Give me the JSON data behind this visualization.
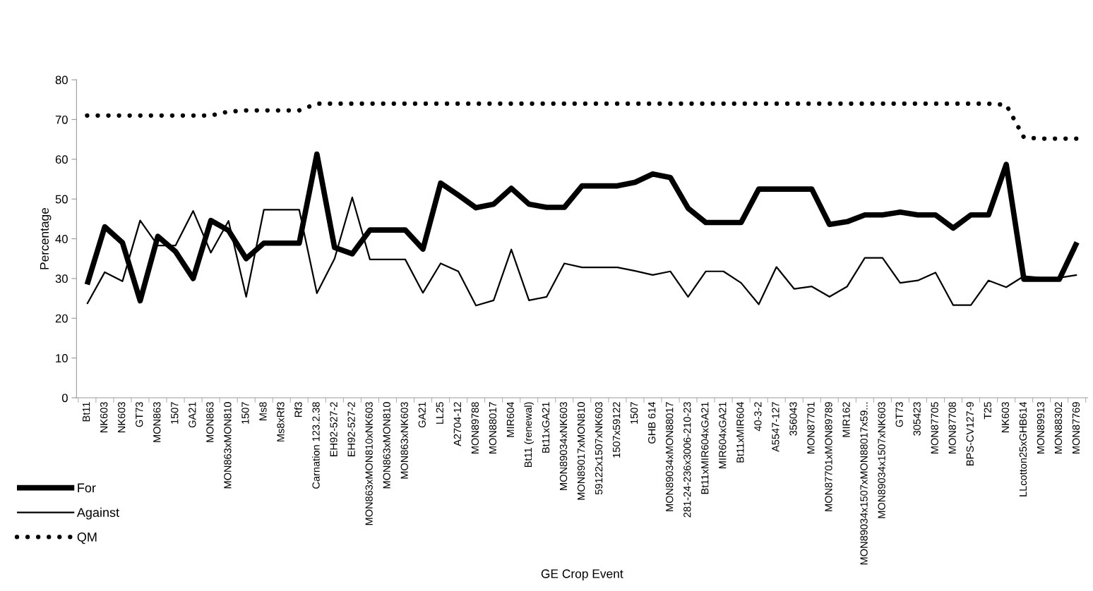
{
  "chart_data": {
    "type": "line",
    "xlabel": "GE Crop Event",
    "ylabel": "Percentage",
    "categories": [
      "Bt11",
      "NK603",
      "NK603",
      "GT73",
      "MON863",
      "1507",
      "GA21",
      "MON863",
      "MON863xMON810",
      "1507",
      "Ms8",
      "Ms8xRf3",
      "Rf3",
      "Carnation 123.2.38",
      "EH92-527-2",
      "EH92-527-2",
      "MON863xMON810xNK603",
      "MON863xMON810",
      "MON863xNK603",
      "GA21",
      "LL25",
      "A2704-12",
      "MON89788",
      "MON88017",
      "MIR604",
      "Bt11 (renewal)",
      "Bt11xGA21",
      "MON89034xNK603",
      "MON89017xMON810",
      "59122x1507xNK603",
      "1507x59122",
      "1507",
      "GHB 614",
      "MON89034xMON88017",
      "281-24-236x3006-210-23",
      "Bt11xMIR604xGA21",
      "MIR604xGA21",
      "Bt11xMIR604",
      "40-3-2",
      "A5547-127",
      "356043",
      "MON87701",
      "MON87701xMON89789",
      "MIR162",
      "MON89034x1507xMON88017x59...",
      "MON89034x1507xNK603",
      "GT73",
      "305423",
      "MON87705",
      "MON87708",
      "BPS-CV127-9",
      "T25",
      "NK603",
      "LLcotton25xGHB614",
      "MON89913",
      "MON88302",
      "MON87769"
    ],
    "series": [
      {
        "name": "For",
        "color": "#000000",
        "line_style": "solid",
        "values": [
          28.5,
          43.0,
          39.0,
          24.4,
          40.6,
          36.8,
          30.0,
          44.6,
          42.1,
          35.0,
          38.9,
          38.9,
          38.9,
          61.3,
          37.8,
          36.2,
          42.2,
          42.2,
          42.2,
          37.4,
          54.0,
          51.0,
          47.8,
          48.7,
          52.7,
          48.7,
          47.9,
          47.9,
          53.3,
          53.3,
          53.3,
          54.2,
          56.3,
          55.4,
          47.7,
          44.1,
          44.1,
          44.1,
          52.5,
          52.5,
          52.5,
          52.5,
          43.6,
          44.3,
          46.0,
          46.0,
          46.7,
          46.0,
          46.0,
          42.7,
          46.0,
          46.0,
          58.7,
          29.8,
          29.8,
          29.8,
          39.1
        ]
      },
      {
        "name": "Against",
        "color": "#000000",
        "line_style": "solid",
        "values": [
          23.6,
          31.6,
          29.3,
          44.6,
          38.3,
          38.3,
          47.0,
          36.5,
          44.5,
          25.4,
          47.3,
          47.3,
          47.3,
          26.3,
          35.0,
          50.4,
          34.8,
          34.8,
          34.8,
          26.4,
          33.8,
          31.8,
          23.2,
          24.5,
          37.3,
          24.5,
          25.4,
          33.8,
          32.8,
          32.8,
          32.8,
          31.9,
          30.9,
          31.8,
          25.4,
          31.8,
          31.8,
          28.9,
          23.5,
          32.9,
          27.4,
          28.0,
          25.4,
          28.0,
          35.2,
          35.2,
          28.9,
          29.5,
          31.5,
          23.3,
          23.3,
          29.5,
          27.8,
          30.6,
          30.2,
          30.2,
          30.9
        ]
      },
      {
        "name": "QM",
        "color": "#000000",
        "line_style": "dotted",
        "values": [
          71,
          71,
          71,
          71,
          71,
          71,
          71,
          71,
          72,
          72.3,
          72.3,
          72.3,
          72.3,
          74,
          74,
          74,
          74,
          74,
          74,
          74,
          74,
          74,
          74,
          74,
          74,
          74,
          74,
          74,
          74,
          74,
          74,
          74,
          74,
          74,
          74,
          74,
          74,
          74,
          74,
          74,
          74,
          74,
          74,
          74,
          74,
          74,
          74,
          74,
          74,
          74,
          74,
          74,
          73.7,
          65.5,
          65.2,
          65.2,
          65.2
        ]
      }
    ],
    "ylim": [
      0,
      80
    ],
    "yticks": [
      0,
      10,
      20,
      30,
      40,
      50,
      60,
      70,
      80
    ],
    "grid": false,
    "legend": "bottom left",
    "marker": "none"
  }
}
